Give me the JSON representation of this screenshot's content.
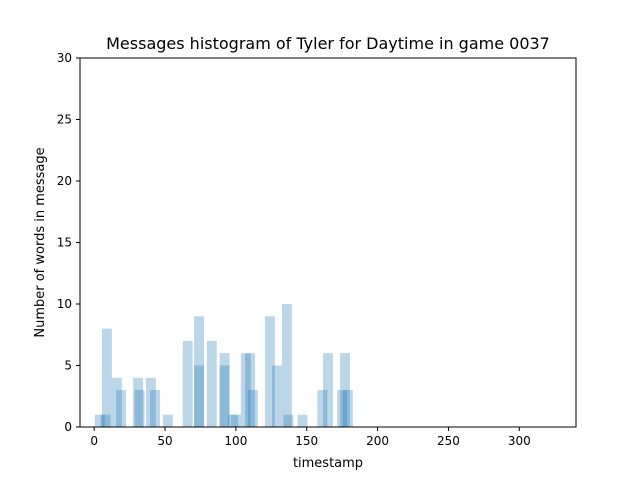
{
  "chart_data": {
    "type": "bar",
    "title": "Messages histogram of Tyler for Daytime in game 0037",
    "xlabel": "timestamp",
    "ylabel": "Number of words in message",
    "xlim": [
      -10,
      340
    ],
    "ylim": [
      0,
      30
    ],
    "xticks": [
      0,
      50,
      100,
      150,
      200,
      250,
      300
    ],
    "yticks": [
      0,
      5,
      10,
      15,
      20,
      25,
      30
    ],
    "bar_width": 7,
    "bar_color": "#1f77b4",
    "bar_opacity": 0.3,
    "grid": false,
    "legend": "none",
    "bars": [
      {
        "x": 4,
        "y": 1
      },
      {
        "x": 8,
        "y": 1
      },
      {
        "x": 9,
        "y": 8
      },
      {
        "x": 16,
        "y": 4
      },
      {
        "x": 19,
        "y": 3
      },
      {
        "x": 31,
        "y": 4
      },
      {
        "x": 32,
        "y": 3
      },
      {
        "x": 40,
        "y": 4
      },
      {
        "x": 43,
        "y": 3
      },
      {
        "x": 52,
        "y": 1
      },
      {
        "x": 66,
        "y": 7
      },
      {
        "x": 74,
        "y": 9
      },
      {
        "x": 74,
        "y": 5
      },
      {
        "x": 83,
        "y": 7
      },
      {
        "x": 92,
        "y": 6
      },
      {
        "x": 92,
        "y": 5
      },
      {
        "x": 98,
        "y": 1
      },
      {
        "x": 100,
        "y": 1
      },
      {
        "x": 107,
        "y": 6
      },
      {
        "x": 110,
        "y": 6
      },
      {
        "x": 112,
        "y": 3
      },
      {
        "x": 124,
        "y": 9
      },
      {
        "x": 129,
        "y": 5
      },
      {
        "x": 136,
        "y": 10
      },
      {
        "x": 137,
        "y": 1
      },
      {
        "x": 147,
        "y": 1
      },
      {
        "x": 161,
        "y": 3
      },
      {
        "x": 165,
        "y": 6
      },
      {
        "x": 175,
        "y": 3
      },
      {
        "x": 177,
        "y": 6
      },
      {
        "x": 179,
        "y": 3
      }
    ]
  }
}
